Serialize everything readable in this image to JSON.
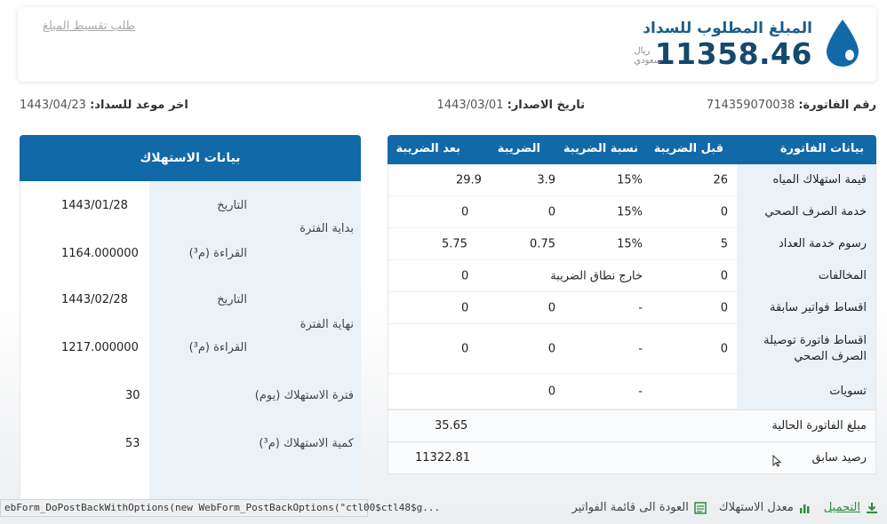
{
  "amount": {
    "title": "المبلغ المطلوب للسداد",
    "value": "11358.46",
    "currency_line1": "ريال",
    "currency_line2": "سعودي",
    "installment_link": "طلب تقسيط المبلغ"
  },
  "info": {
    "invoice_label": "رقم الفاتورة:",
    "invoice_value": "714359070038",
    "issue_label": "تاريخ الاصدار:",
    "issue_value": "1443/03/01",
    "due_label": "اخر موعد للسداد:",
    "due_value": "1443/04/23"
  },
  "bill_table": {
    "headers": {
      "item": "بيانات الفاتورة",
      "before_tax": "قبل الضريبة",
      "tax_rate": "نسبة الضريبة",
      "tax": "الضريبة",
      "after_tax": "بعد الضريبة"
    },
    "rows": [
      {
        "label": "قيمة استهلاك المياه",
        "before": "26",
        "rate": "15%",
        "tax": "3.9",
        "after": "29.9"
      },
      {
        "label": "خدمة الصرف الصحي",
        "before": "0",
        "rate": "15%",
        "tax": "0",
        "after": "0"
      },
      {
        "label": "رسوم خدمة العداد",
        "before": "5",
        "rate": "15%",
        "tax": "0.75",
        "after": "5.75"
      },
      {
        "label": "المخالفات",
        "before": "0",
        "rate": "",
        "tax": "خارج نطاق الضريبة",
        "after": "0"
      },
      {
        "label": "اقساط فواتير سابقة",
        "before": "0",
        "rate": "-",
        "tax": "0",
        "after": "0"
      },
      {
        "label": "اقساط فاتورة توصيلة الصرف الصحي",
        "before": "0",
        "rate": "-",
        "tax": "0",
        "after": "0"
      },
      {
        "label": "تسويات",
        "before": "",
        "rate": "-",
        "tax": "0",
        "after": ""
      }
    ],
    "current_label": "مبلغ الفاتورة الحالية",
    "current_value": "35.65",
    "prev_label": "رصيد سابق",
    "prev_value": "11322.81"
  },
  "consumption": {
    "title": "بيانات الاستهلاك",
    "start_label": "بداية الفترة",
    "end_label": "نهاية الفترة",
    "date_label": "التاريخ",
    "reading_label": "القراءة (م³)",
    "start_date": "1443/01/28",
    "start_reading": "1164.000000",
    "end_date": "1443/02/28",
    "end_reading": "1217.000000",
    "period_label": "فترة الاستهلاك (يوم)",
    "period_value": "30",
    "qty_label": "كمية الاستهلاك (م³)",
    "qty_value": "53"
  },
  "bottom": {
    "status_text": "ebForm_DoPostBackWithOptions(new WebForm_PostBackOptions(\"ctl00$ctl48$g...",
    "download": "التحميل",
    "rate": "معدل الاستهلاك",
    "back": "العودة الى قائمة الفواتير"
  },
  "colors": {
    "header_blue": "#1169a8",
    "amount_navy": "#13496d",
    "label_tint": "#eaf2f8",
    "download_green": "#2e8b3e"
  }
}
